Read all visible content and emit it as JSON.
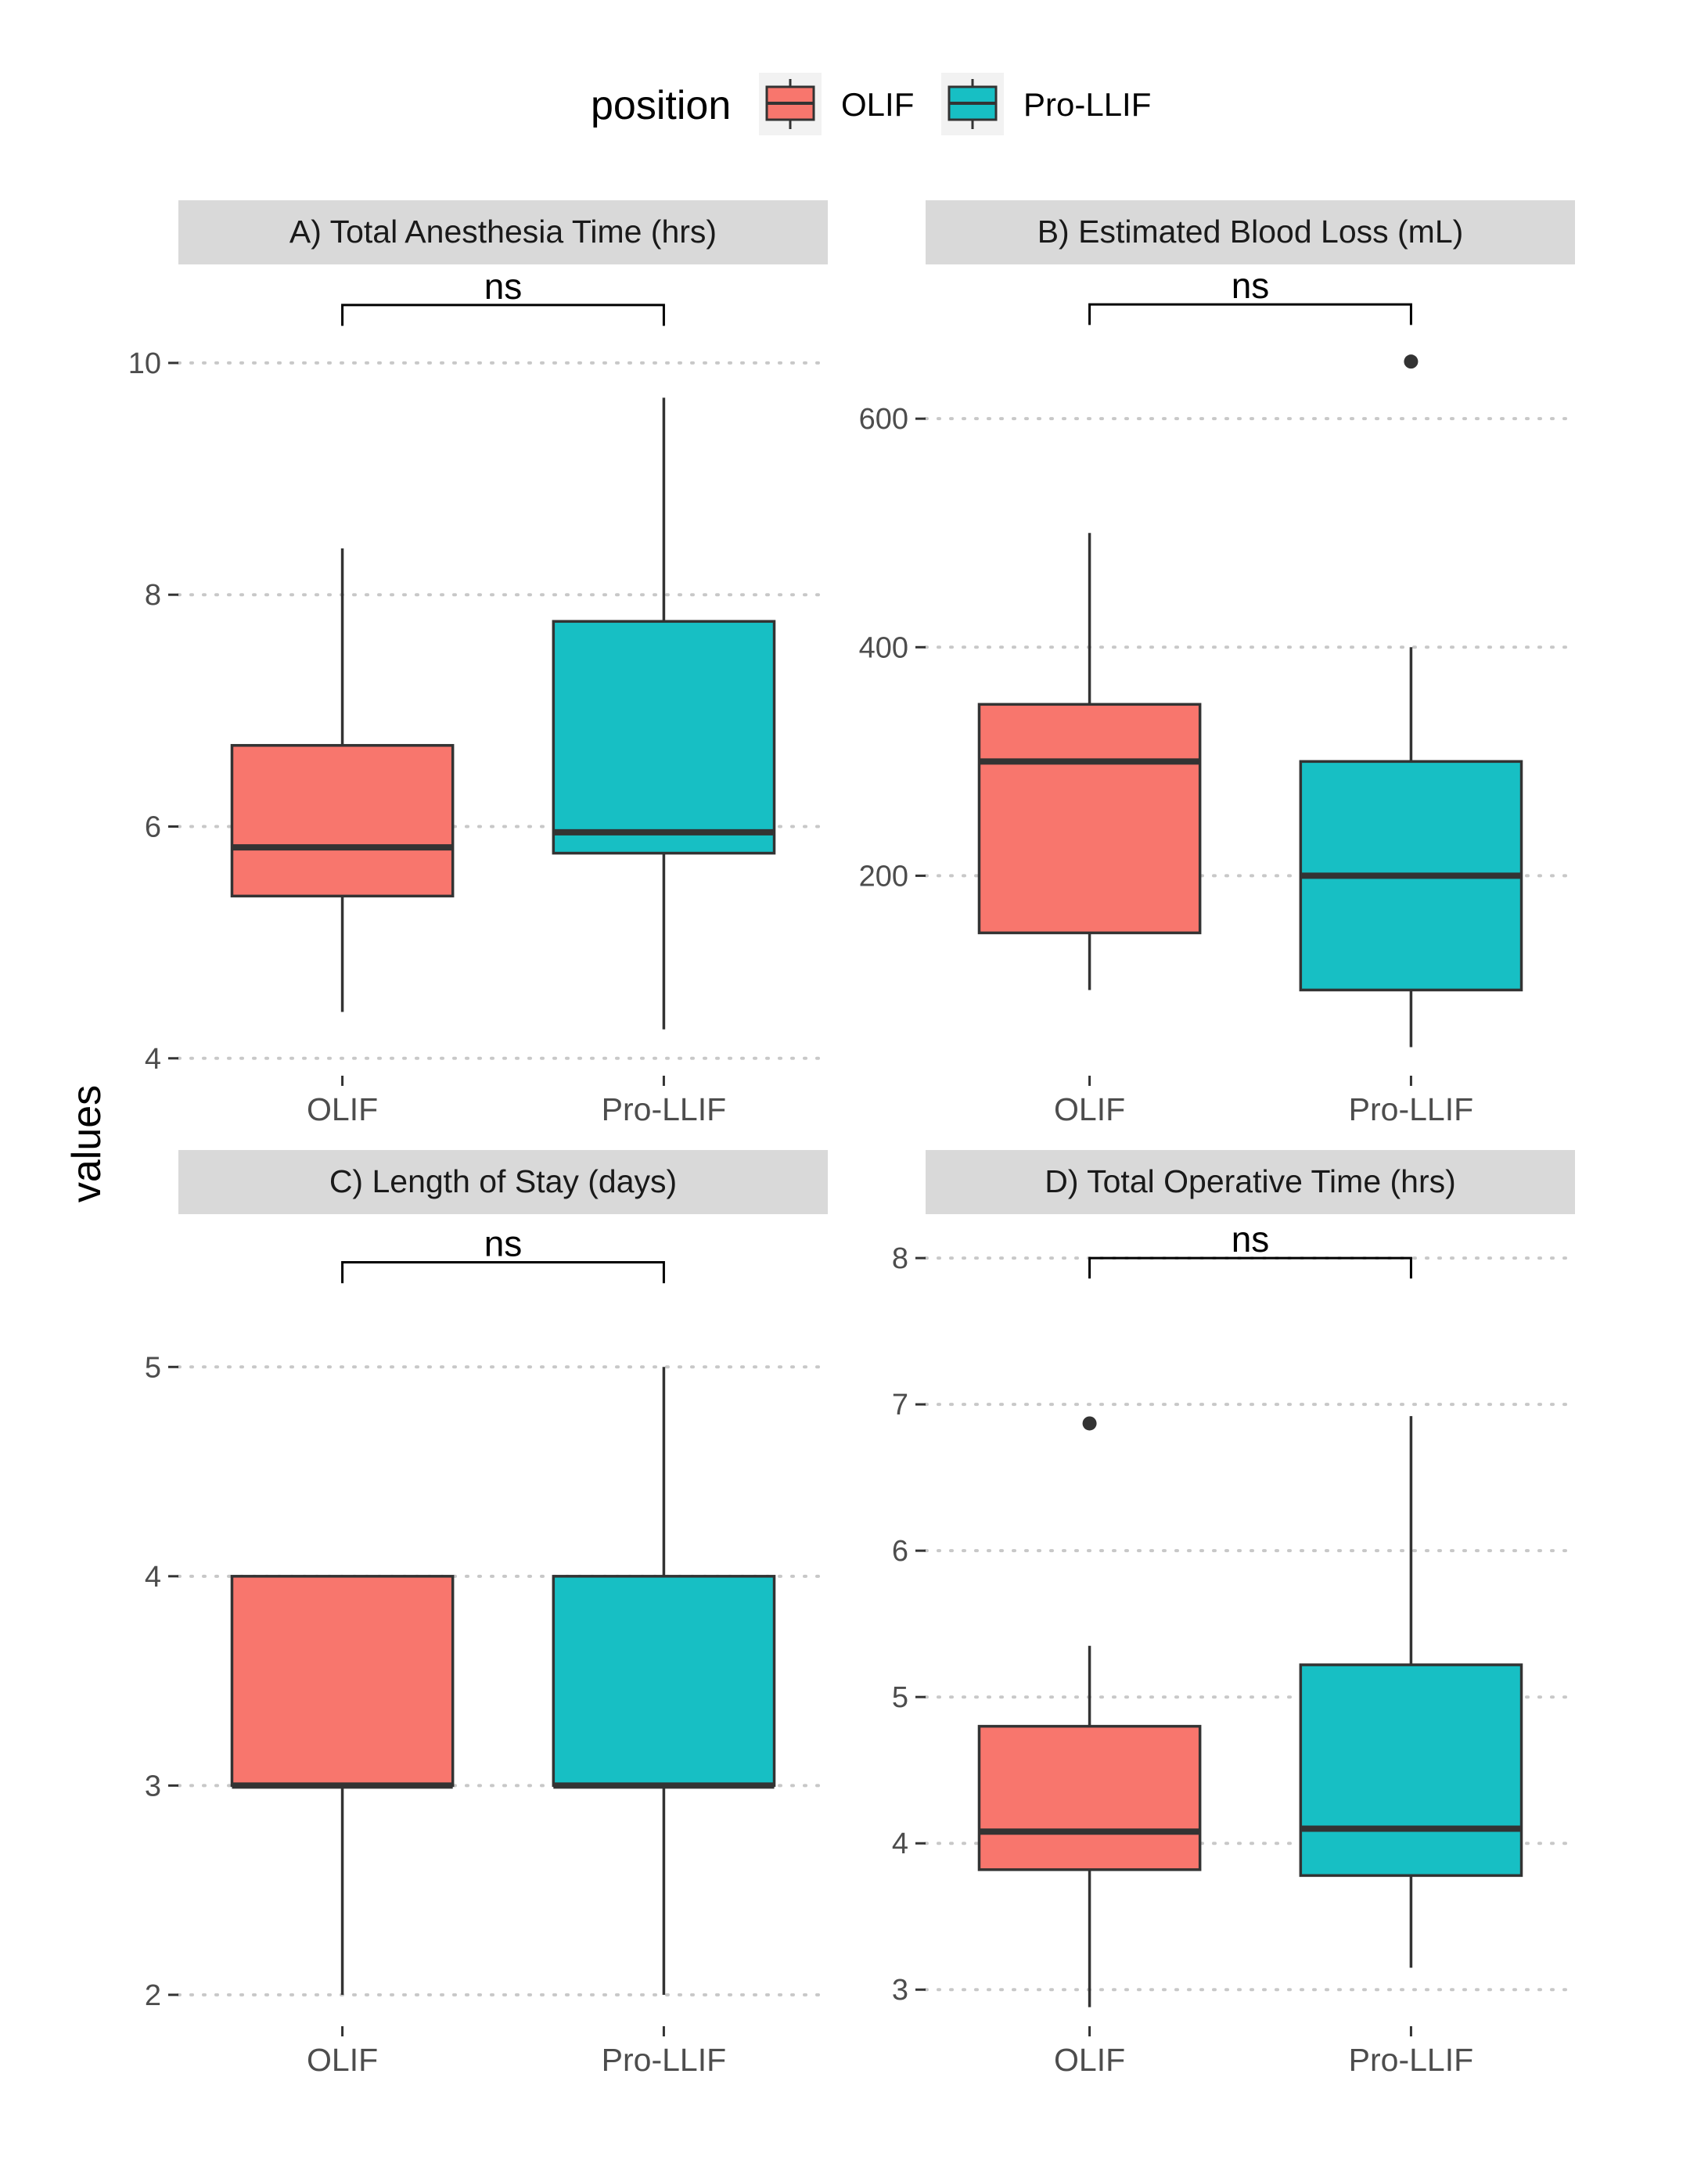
{
  "legend": {
    "title": "position",
    "items": [
      {
        "label": "OLIF",
        "color": "#F8766D"
      },
      {
        "label": "Pro-LLIF",
        "color": "#17BFC4"
      }
    ]
  },
  "y_axis_title": "values",
  "colors": {
    "olif": "#F8766D",
    "prollif": "#17BFC4",
    "strip_bg": "#D9D9D9",
    "grid": "#C8C8C8",
    "outline": "#333333"
  },
  "chart_data": [
    {
      "type": "boxplot",
      "title": "A) Total Anesthesia Time (hrs)",
      "categories": [
        "OLIF",
        "Pro-LLIF"
      ],
      "ylim": [
        3.85,
        10.85
      ],
      "yticks": [
        4,
        6,
        8,
        10
      ],
      "significance": "ns",
      "sig_y": 10.5,
      "sig_drop": 0.18,
      "boxes": [
        {
          "group": "OLIF",
          "whisker_low": 4.4,
          "q1": 5.4,
          "median": 5.82,
          "q3": 6.7,
          "whisker_high": 8.4,
          "outliers": []
        },
        {
          "group": "Pro-LLIF",
          "whisker_low": 4.25,
          "q1": 5.77,
          "median": 5.95,
          "q3": 7.77,
          "whisker_high": 9.7,
          "outliers": []
        }
      ]
    },
    {
      "type": "boxplot",
      "title": "B) Estimated Blood Loss (mL)",
      "categories": [
        "OLIF",
        "Pro-LLIF"
      ],
      "ylim": [
        25,
        735
      ],
      "yticks": [
        200,
        400,
        600
      ],
      "significance": "ns",
      "sig_y": 700,
      "sig_drop": 18,
      "boxes": [
        {
          "group": "OLIF",
          "whisker_low": 100,
          "q1": 150,
          "median": 300,
          "q3": 350,
          "whisker_high": 500,
          "outliers": []
        },
        {
          "group": "Pro-LLIF",
          "whisker_low": 50,
          "q1": 100,
          "median": 200,
          "q3": 300,
          "whisker_high": 400,
          "outliers": [
            650
          ]
        }
      ]
    },
    {
      "type": "boxplot",
      "title": "C) Length of Stay (days)",
      "categories": [
        "OLIF",
        "Pro-LLIF"
      ],
      "ylim": [
        1.85,
        5.73
      ],
      "yticks": [
        2,
        3,
        4,
        5
      ],
      "significance": "ns",
      "sig_y": 5.5,
      "sig_drop": 0.1,
      "boxes": [
        {
          "group": "OLIF",
          "whisker_low": 2,
          "q1": 3,
          "median": 3,
          "q3": 4,
          "whisker_high": 4,
          "outliers": []
        },
        {
          "group": "Pro-LLIF",
          "whisker_low": 2,
          "q1": 3,
          "median": 3,
          "q3": 4,
          "whisker_high": 5,
          "outliers": []
        }
      ]
    },
    {
      "type": "boxplot",
      "title": "D) Total Operative Time (hrs)",
      "categories": [
        "OLIF",
        "Pro-LLIF"
      ],
      "ylim": [
        2.75,
        8.3
      ],
      "yticks": [
        3,
        4,
        5,
        6,
        7,
        8
      ],
      "significance": "ns",
      "sig_y": 8.0,
      "sig_drop": 0.14,
      "boxes": [
        {
          "group": "OLIF",
          "whisker_low": 2.88,
          "q1": 3.82,
          "median": 4.08,
          "q3": 4.8,
          "whisker_high": 5.35,
          "outliers": [
            6.87
          ]
        },
        {
          "group": "Pro-LLIF",
          "whisker_low": 3.15,
          "q1": 3.78,
          "median": 4.1,
          "q3": 5.22,
          "whisker_high": 6.92,
          "outliers": []
        }
      ]
    }
  ]
}
